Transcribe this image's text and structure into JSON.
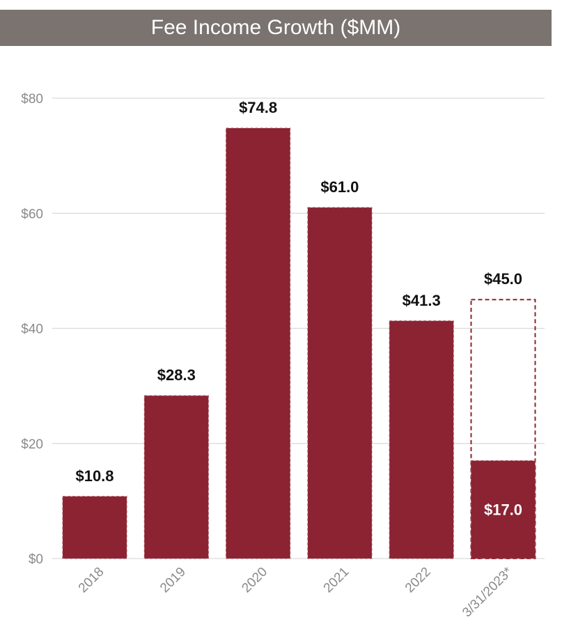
{
  "chart_data": {
    "type": "bar",
    "title": "Fee Income Growth ($MM)",
    "categories": [
      "2018",
      "2019",
      "2020",
      "2021",
      "2022",
      "3/31/2023*"
    ],
    "values": [
      10.8,
      28.3,
      74.8,
      61.0,
      41.3,
      17.0
    ],
    "value_labels": [
      "$10.8",
      "$28.3",
      "$74.8",
      "$61.0",
      "$41.3",
      "$17.0"
    ],
    "projection": {
      "category": "3/31/2023*",
      "value": 45.0,
      "label": "$45.0",
      "style": "dashed-outline"
    },
    "ylim": [
      0,
      80
    ],
    "yticks": [
      0,
      20,
      40,
      60,
      80
    ],
    "ytick_labels": [
      "$0",
      "$20",
      "$40",
      "$60",
      "$80"
    ],
    "grid": true,
    "xlabel": "",
    "ylabel": "",
    "colors": {
      "bar": "#8b2332",
      "grid": "#d9d9d9",
      "title_bg": "#7a7370",
      "tick": "#8a8a8a"
    }
  }
}
